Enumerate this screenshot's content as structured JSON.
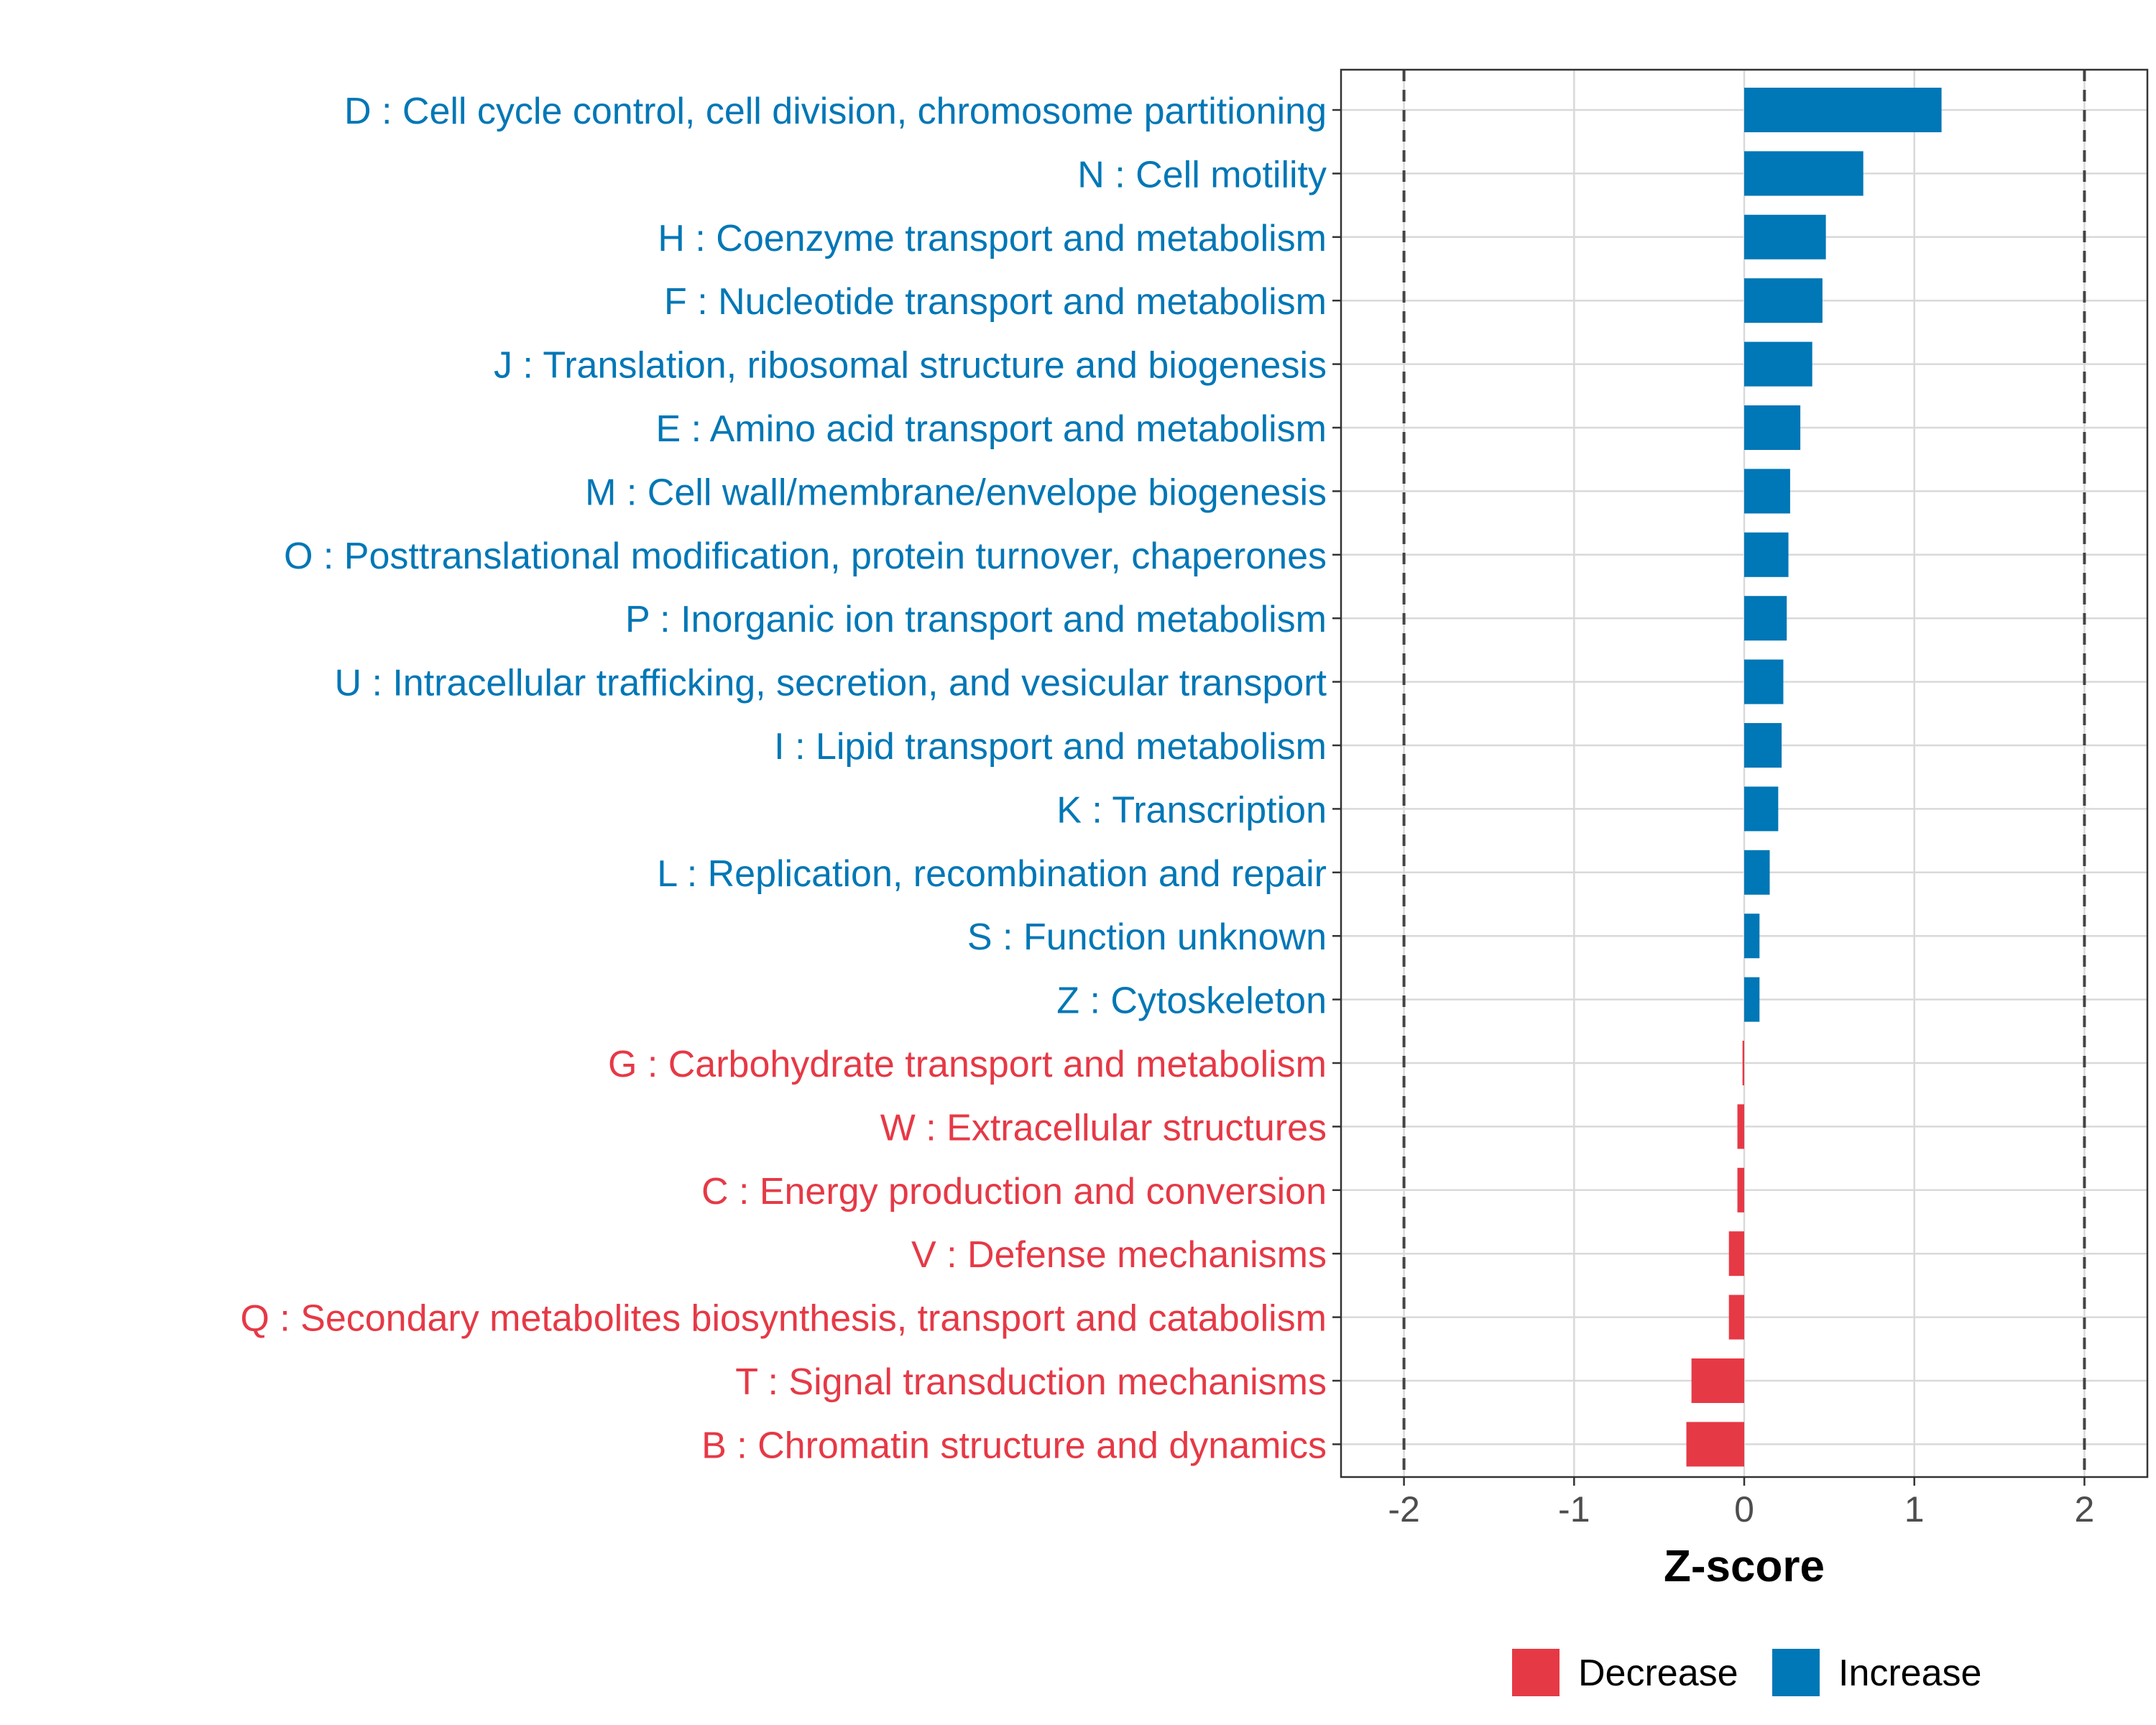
{
  "chart_data": {
    "type": "bar",
    "orientation": "horizontal",
    "title": "",
    "xlabel": "Z-score",
    "ylabel": "",
    "xlim": [
      -2.37,
      2.37
    ],
    "xticks": [
      {
        "value": -2,
        "label": "-2"
      },
      {
        "value": -1,
        "label": "-1"
      },
      {
        "value": 0,
        "label": "0"
      },
      {
        "value": 1,
        "label": "1"
      },
      {
        "value": 2,
        "label": "2"
      }
    ],
    "reference_lines": [
      -2,
      2
    ],
    "grid": true,
    "colors": {
      "Decrease": "#e63946",
      "Increase": "#0077b6"
    },
    "legend": {
      "position": "bottom",
      "items": [
        {
          "label": "Decrease",
          "color": "#e63946"
        },
        {
          "label": "Increase",
          "color": "#0077b6"
        }
      ]
    },
    "categories": [
      {
        "label": "D : Cell cycle control, cell division, chromosome partitioning",
        "value": 1.16,
        "group": "Increase"
      },
      {
        "label": "N : Cell motility",
        "value": 0.7,
        "group": "Increase"
      },
      {
        "label": "H : Coenzyme transport and metabolism",
        "value": 0.48,
        "group": "Increase"
      },
      {
        "label": "F : Nucleotide transport and metabolism",
        "value": 0.46,
        "group": "Increase"
      },
      {
        "label": "J : Translation, ribosomal structure and biogenesis",
        "value": 0.4,
        "group": "Increase"
      },
      {
        "label": "E : Amino acid transport and metabolism",
        "value": 0.33,
        "group": "Increase"
      },
      {
        "label": "M : Cell wall/membrane/envelope biogenesis",
        "value": 0.27,
        "group": "Increase"
      },
      {
        "label": "O : Posttranslational modification, protein turnover, chaperones",
        "value": 0.26,
        "group": "Increase"
      },
      {
        "label": "P : Inorganic ion transport and metabolism",
        "value": 0.25,
        "group": "Increase"
      },
      {
        "label": "U : Intracellular trafficking, secretion, and vesicular transport",
        "value": 0.23,
        "group": "Increase"
      },
      {
        "label": "I : Lipid transport and metabolism",
        "value": 0.22,
        "group": "Increase"
      },
      {
        "label": "K : Transcription",
        "value": 0.2,
        "group": "Increase"
      },
      {
        "label": "L : Replication, recombination and repair",
        "value": 0.15,
        "group": "Increase"
      },
      {
        "label": "S : Function unknown",
        "value": 0.09,
        "group": "Increase"
      },
      {
        "label": "Z : Cytoskeleton",
        "value": 0.09,
        "group": "Increase"
      },
      {
        "label": "G : Carbohydrate transport and metabolism",
        "value": -0.01,
        "group": "Decrease"
      },
      {
        "label": "W : Extracellular structures",
        "value": -0.04,
        "group": "Decrease"
      },
      {
        "label": "C : Energy production and conversion",
        "value": -0.04,
        "group": "Decrease"
      },
      {
        "label": "V : Defense mechanisms",
        "value": -0.09,
        "group": "Decrease"
      },
      {
        "label": "Q : Secondary metabolites biosynthesis, transport and catabolism",
        "value": -0.09,
        "group": "Decrease"
      },
      {
        "label": "T : Signal transduction mechanisms",
        "value": -0.31,
        "group": "Decrease"
      },
      {
        "label": "B : Chromatin structure and dynamics",
        "value": -0.34,
        "group": "Decrease"
      }
    ]
  }
}
